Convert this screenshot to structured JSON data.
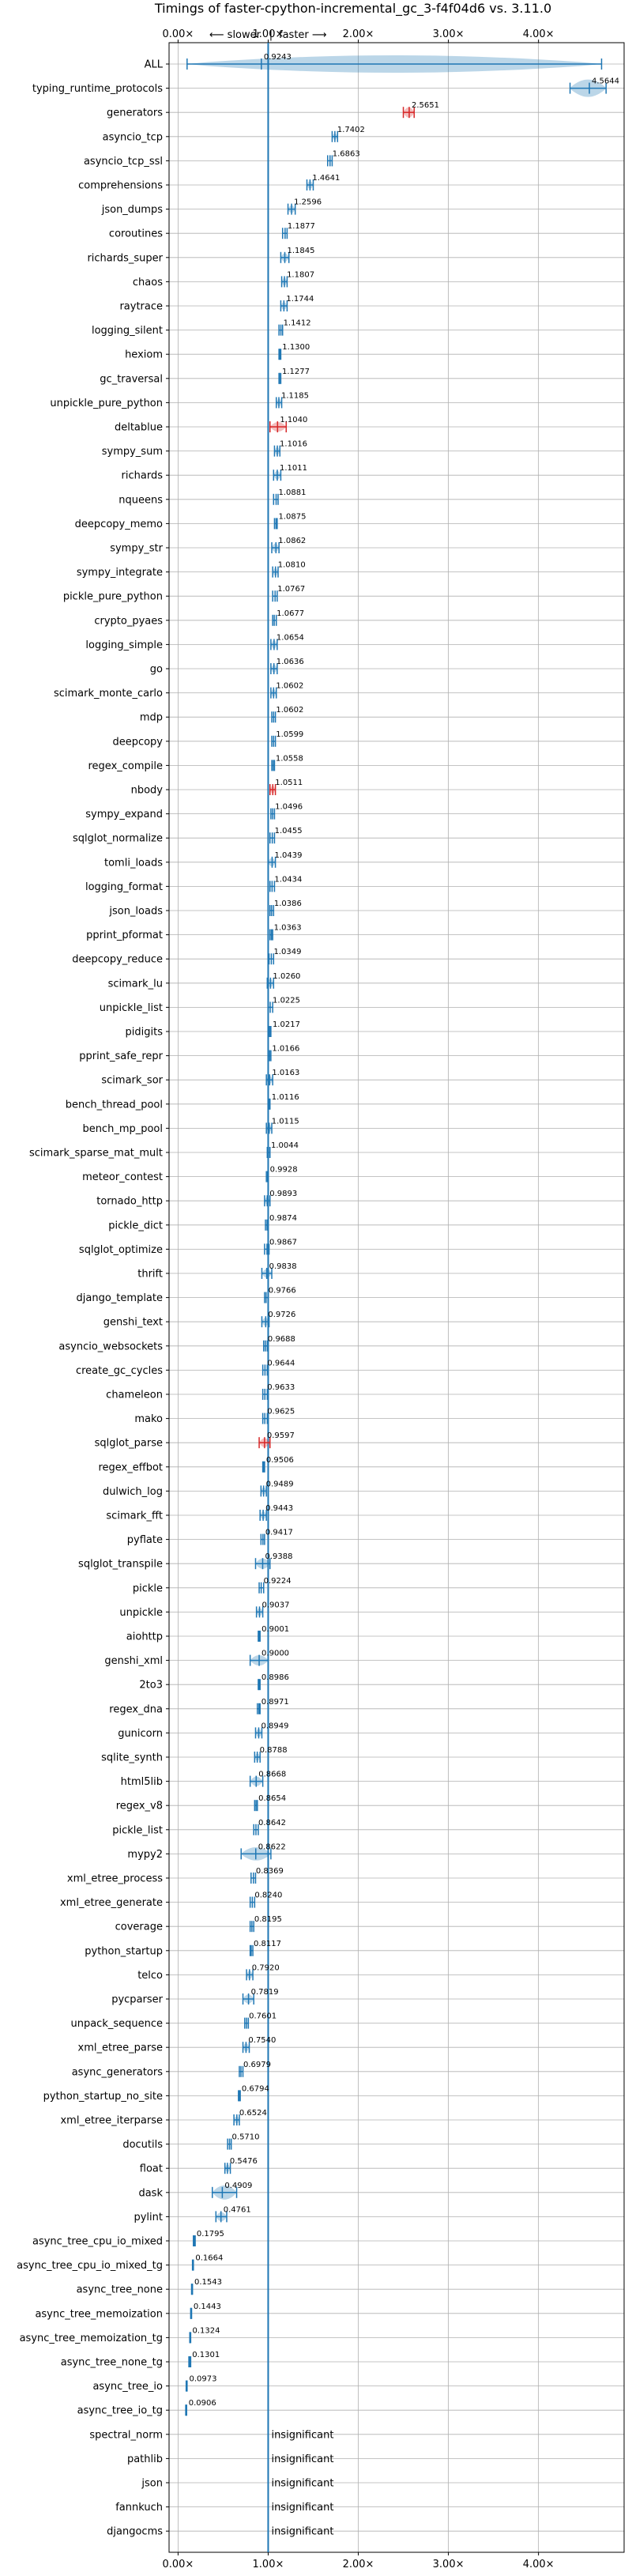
{
  "chart_data": {
    "type": "violin",
    "title": "Timings of faster-cpython-incremental_gc_3-f4f04d6 vs. 3.11.0",
    "direction_left": "⟵ slower",
    "direction_sep": "|",
    "direction_right": "faster ⟶",
    "xlim": [
      -0.1,
      4.95
    ],
    "xticks": [
      0,
      1,
      2,
      3,
      4
    ],
    "xtick_labels": [
      "0.00×",
      "1.00×",
      "2.00×",
      "3.00×",
      "4.00×"
    ],
    "reference_line": 1.0,
    "grid": true,
    "insignificant_label": "insignificant",
    "colors": {
      "violin": "#1f77b4",
      "violin_slower": "#d62728",
      "reference": "#1f77b4"
    },
    "rows": [
      {
        "name": "ALL",
        "value": 0.9243,
        "label": "0.9243",
        "lo": 0.1,
        "hi": 4.7,
        "spread": 0.45
      },
      {
        "name": "typing_runtime_protocols",
        "value": 4.5644,
        "label": "4.5644",
        "lo": 4.35,
        "hi": 4.75,
        "spread": 0.18
      },
      {
        "name": "generators",
        "value": 2.5651,
        "label": "2.5651",
        "lo": 2.5,
        "hi": 2.62,
        "spread": 0.06,
        "slower": true
      },
      {
        "name": "asyncio_tcp",
        "value": 1.7402,
        "label": "1.7402",
        "lo": 1.71,
        "hi": 1.77,
        "spread": 0.02
      },
      {
        "name": "asyncio_tcp_ssl",
        "value": 1.6863,
        "label": "1.6863",
        "lo": 1.66,
        "hi": 1.71,
        "spread": 0.02
      },
      {
        "name": "comprehensions",
        "value": 1.4641,
        "label": "1.4641",
        "lo": 1.43,
        "hi": 1.5,
        "spread": 0.03
      },
      {
        "name": "json_dumps",
        "value": 1.2596,
        "label": "1.2596",
        "lo": 1.22,
        "hi": 1.3,
        "spread": 0.03
      },
      {
        "name": "coroutines",
        "value": 1.1877,
        "label": "1.1877",
        "lo": 1.16,
        "hi": 1.21,
        "spread": 0.02
      },
      {
        "name": "richards_super",
        "value": 1.1845,
        "label": "1.1845",
        "lo": 1.14,
        "hi": 1.23,
        "spread": 0.04
      },
      {
        "name": "chaos",
        "value": 1.1807,
        "label": "1.1807",
        "lo": 1.15,
        "hi": 1.21,
        "spread": 0.03
      },
      {
        "name": "raytrace",
        "value": 1.1744,
        "label": "1.1744",
        "lo": 1.14,
        "hi": 1.21,
        "spread": 0.03
      },
      {
        "name": "logging_silent",
        "value": 1.1412,
        "label": "1.1412",
        "lo": 1.12,
        "hi": 1.16,
        "spread": 0.02
      },
      {
        "name": "hexiom",
        "value": 1.13,
        "label": "1.1300",
        "lo": 1.12,
        "hi": 1.14,
        "spread": 0.01
      },
      {
        "name": "gc_traversal",
        "value": 1.1277,
        "label": "1.1277",
        "lo": 1.12,
        "hi": 1.14,
        "spread": 0.01
      },
      {
        "name": "unpickle_pure_python",
        "value": 1.1185,
        "label": "1.1185",
        "lo": 1.09,
        "hi": 1.15,
        "spread": 0.03
      },
      {
        "name": "deltablue",
        "value": 1.104,
        "label": "1.1040",
        "lo": 1.02,
        "hi": 1.2,
        "spread": 0.05,
        "slower": true
      },
      {
        "name": "sympy_sum",
        "value": 1.1016,
        "label": "1.1016",
        "lo": 1.07,
        "hi": 1.13,
        "spread": 0.03
      },
      {
        "name": "richards",
        "value": 1.1011,
        "label": "1.1011",
        "lo": 1.06,
        "hi": 1.14,
        "spread": 0.04
      },
      {
        "name": "nqueens",
        "value": 1.0881,
        "label": "1.0881",
        "lo": 1.06,
        "hi": 1.11,
        "spread": 0.02
      },
      {
        "name": "deepcopy_memo",
        "value": 1.0875,
        "label": "1.0875",
        "lo": 1.07,
        "hi": 1.1,
        "spread": 0.015
      },
      {
        "name": "sympy_str",
        "value": 1.0862,
        "label": "1.0862",
        "lo": 1.04,
        "hi": 1.12,
        "spread": 0.04
      },
      {
        "name": "sympy_integrate",
        "value": 1.081,
        "label": "1.0810",
        "lo": 1.05,
        "hi": 1.11,
        "spread": 0.03
      },
      {
        "name": "pickle_pure_python",
        "value": 1.0767,
        "label": "1.0767",
        "lo": 1.05,
        "hi": 1.1,
        "spread": 0.03
      },
      {
        "name": "crypto_pyaes",
        "value": 1.0677,
        "label": "1.0677",
        "lo": 1.05,
        "hi": 1.09,
        "spread": 0.02
      },
      {
        "name": "logging_simple",
        "value": 1.0654,
        "label": "1.0654",
        "lo": 1.03,
        "hi": 1.1,
        "spread": 0.035
      },
      {
        "name": "go",
        "value": 1.0636,
        "label": "1.0636",
        "lo": 1.03,
        "hi": 1.1,
        "spread": 0.035
      },
      {
        "name": "scimark_monte_carlo",
        "value": 1.0602,
        "label": "1.0602",
        "lo": 1.03,
        "hi": 1.09,
        "spread": 0.03
      },
      {
        "name": "mdp",
        "value": 1.0602,
        "label": "1.0602",
        "lo": 1.04,
        "hi": 1.08,
        "spread": 0.02
      },
      {
        "name": "deepcopy",
        "value": 1.0599,
        "label": "1.0599",
        "lo": 1.04,
        "hi": 1.08,
        "spread": 0.02
      },
      {
        "name": "regex_compile",
        "value": 1.0558,
        "label": "1.0558",
        "lo": 1.04,
        "hi": 1.07,
        "spread": 0.015
      },
      {
        "name": "nbody",
        "value": 1.0511,
        "label": "1.0511",
        "lo": 1.02,
        "hi": 1.08,
        "spread": 0.03,
        "slower": true
      },
      {
        "name": "sympy_expand",
        "value": 1.0496,
        "label": "1.0496",
        "lo": 1.03,
        "hi": 1.07,
        "spread": 0.02
      },
      {
        "name": "sqlglot_normalize",
        "value": 1.0455,
        "label": "1.0455",
        "lo": 1.02,
        "hi": 1.07,
        "spread": 0.025
      },
      {
        "name": "tomli_loads",
        "value": 1.0439,
        "label": "1.0439",
        "lo": 1.0,
        "hi": 1.08,
        "spread": 0.04
      },
      {
        "name": "logging_format",
        "value": 1.0434,
        "label": "1.0434",
        "lo": 1.02,
        "hi": 1.07,
        "spread": 0.025
      },
      {
        "name": "json_loads",
        "value": 1.0386,
        "label": "1.0386",
        "lo": 1.02,
        "hi": 1.06,
        "spread": 0.02
      },
      {
        "name": "pprint_pformat",
        "value": 1.0363,
        "label": "1.0363",
        "lo": 1.02,
        "hi": 1.05,
        "spread": 0.015
      },
      {
        "name": "deepcopy_reduce",
        "value": 1.0349,
        "label": "1.0349",
        "lo": 1.01,
        "hi": 1.06,
        "spread": 0.025
      },
      {
        "name": "scimark_lu",
        "value": 1.026,
        "label": "1.0260",
        "lo": 0.99,
        "hi": 1.06,
        "spread": 0.035
      },
      {
        "name": "unpickle_list",
        "value": 1.0225,
        "label": "1.0225",
        "lo": 1.0,
        "hi": 1.05,
        "spread": 0.025
      },
      {
        "name": "pidigits",
        "value": 1.0217,
        "label": "1.0217",
        "lo": 1.01,
        "hi": 1.03,
        "spread": 0.01
      },
      {
        "name": "pprint_safe_repr",
        "value": 1.0166,
        "label": "1.0166",
        "lo": 1.0,
        "hi": 1.03,
        "spread": 0.015
      },
      {
        "name": "scimark_sor",
        "value": 1.0163,
        "label": "1.0163",
        "lo": 0.98,
        "hi": 1.05,
        "spread": 0.035
      },
      {
        "name": "bench_thread_pool",
        "value": 1.0116,
        "label": "1.0116",
        "lo": 1.0,
        "hi": 1.02,
        "spread": 0.01
      },
      {
        "name": "bench_mp_pool",
        "value": 1.0115,
        "label": "1.0115",
        "lo": 0.98,
        "hi": 1.04,
        "spread": 0.03
      },
      {
        "name": "scimark_sparse_mat_mult",
        "value": 1.0044,
        "label": "1.0044",
        "lo": 0.99,
        "hi": 1.02,
        "spread": 0.015
      },
      {
        "name": "meteor_contest",
        "value": 0.9928,
        "label": "0.9928",
        "lo": 0.98,
        "hi": 1.0,
        "spread": 0.01
      },
      {
        "name": "tornado_http",
        "value": 0.9893,
        "label": "0.9893",
        "lo": 0.96,
        "hi": 1.02,
        "spread": 0.03
      },
      {
        "name": "pickle_dict",
        "value": 0.9874,
        "label": "0.9874",
        "lo": 0.97,
        "hi": 1.0,
        "spread": 0.015
      },
      {
        "name": "sqlglot_optimize",
        "value": 0.9867,
        "label": "0.9867",
        "lo": 0.96,
        "hi": 1.01,
        "spread": 0.025
      },
      {
        "name": "thrift",
        "value": 0.9838,
        "label": "0.9838",
        "lo": 0.93,
        "hi": 1.04,
        "spread": 0.04
      },
      {
        "name": "django_template",
        "value": 0.9766,
        "label": "0.9766",
        "lo": 0.96,
        "hi": 1.0,
        "spread": 0.02
      },
      {
        "name": "genshi_text",
        "value": 0.9726,
        "label": "0.9726",
        "lo": 0.93,
        "hi": 1.01,
        "spread": 0.035
      },
      {
        "name": "asyncio_websockets",
        "value": 0.9688,
        "label": "0.9688",
        "lo": 0.95,
        "hi": 0.99,
        "spread": 0.02
      },
      {
        "name": "create_gc_cycles",
        "value": 0.9644,
        "label": "0.9644",
        "lo": 0.94,
        "hi": 0.99,
        "spread": 0.025
      },
      {
        "name": "chameleon",
        "value": 0.9633,
        "label": "0.9633",
        "lo": 0.94,
        "hi": 0.99,
        "spread": 0.025
      },
      {
        "name": "mako",
        "value": 0.9625,
        "label": "0.9625",
        "lo": 0.94,
        "hi": 0.99,
        "spread": 0.025
      },
      {
        "name": "sqlglot_parse",
        "value": 0.9597,
        "label": "0.9597",
        "lo": 0.9,
        "hi": 1.02,
        "spread": 0.045,
        "slower": true
      },
      {
        "name": "regex_effbot",
        "value": 0.9506,
        "label": "0.9506",
        "lo": 0.94,
        "hi": 0.96,
        "spread": 0.01
      },
      {
        "name": "dulwich_log",
        "value": 0.9489,
        "label": "0.9489",
        "lo": 0.92,
        "hi": 0.98,
        "spread": 0.03
      },
      {
        "name": "scimark_fft",
        "value": 0.9443,
        "label": "0.9443",
        "lo": 0.91,
        "hi": 0.98,
        "spread": 0.035
      },
      {
        "name": "pyflate",
        "value": 0.9417,
        "label": "0.9417",
        "lo": 0.92,
        "hi": 0.96,
        "spread": 0.02
      },
      {
        "name": "sqlglot_transpile",
        "value": 0.9388,
        "label": "0.9388",
        "lo": 0.86,
        "hi": 1.02,
        "spread": 0.06
      },
      {
        "name": "pickle",
        "value": 0.9224,
        "label": "0.9224",
        "lo": 0.9,
        "hi": 0.95,
        "spread": 0.025
      },
      {
        "name": "unpickle",
        "value": 0.9037,
        "label": "0.9037",
        "lo": 0.87,
        "hi": 0.94,
        "spread": 0.035
      },
      {
        "name": "aiohttp",
        "value": 0.9001,
        "label": "0.9001",
        "lo": 0.89,
        "hi": 0.91,
        "spread": 0.01
      },
      {
        "name": "genshi_xml",
        "value": 0.9,
        "label": "0.9000",
        "lo": 0.8,
        "hi": 1.0,
        "spread": 0.06
      },
      {
        "name": "2to3",
        "value": 0.8986,
        "label": "0.8986",
        "lo": 0.89,
        "hi": 0.91,
        "spread": 0.01
      },
      {
        "name": "regex_dna",
        "value": 0.8971,
        "label": "0.8971",
        "lo": 0.88,
        "hi": 0.91,
        "spread": 0.01
      },
      {
        "name": "gunicorn",
        "value": 0.8949,
        "label": "0.8949",
        "lo": 0.86,
        "hi": 0.93,
        "spread": 0.035
      },
      {
        "name": "sqlite_synth",
        "value": 0.8788,
        "label": "0.8788",
        "lo": 0.85,
        "hi": 0.91,
        "spread": 0.03
      },
      {
        "name": "html5lib",
        "value": 0.8668,
        "label": "0.8668",
        "lo": 0.8,
        "hi": 0.94,
        "spread": 0.05
      },
      {
        "name": "regex_v8",
        "value": 0.8654,
        "label": "0.8654",
        "lo": 0.85,
        "hi": 0.88,
        "spread": 0.015
      },
      {
        "name": "pickle_list",
        "value": 0.8642,
        "label": "0.8642",
        "lo": 0.84,
        "hi": 0.89,
        "spread": 0.025
      },
      {
        "name": "mypy2",
        "value": 0.8622,
        "label": "0.8622",
        "lo": 0.7,
        "hi": 1.03,
        "spread": 0.09
      },
      {
        "name": "xml_etree_process",
        "value": 0.8369,
        "label": "0.8369",
        "lo": 0.81,
        "hi": 0.86,
        "spread": 0.025
      },
      {
        "name": "xml_etree_generate",
        "value": 0.824,
        "label": "0.8240",
        "lo": 0.8,
        "hi": 0.85,
        "spread": 0.025
      },
      {
        "name": "coverage",
        "value": 0.8195,
        "label": "0.8195",
        "lo": 0.8,
        "hi": 0.84,
        "spread": 0.02
      },
      {
        "name": "python_startup",
        "value": 0.8117,
        "label": "0.8117",
        "lo": 0.8,
        "hi": 0.83,
        "spread": 0.01
      },
      {
        "name": "telco",
        "value": 0.792,
        "label": "0.7920",
        "lo": 0.76,
        "hi": 0.83,
        "spread": 0.035
      },
      {
        "name": "pycparser",
        "value": 0.7819,
        "label": "0.7819",
        "lo": 0.72,
        "hi": 0.84,
        "spread": 0.045
      },
      {
        "name": "unpack_sequence",
        "value": 0.7601,
        "label": "0.7601",
        "lo": 0.74,
        "hi": 0.78,
        "spread": 0.02
      },
      {
        "name": "xml_etree_parse",
        "value": 0.754,
        "label": "0.7540",
        "lo": 0.72,
        "hi": 0.79,
        "spread": 0.035
      },
      {
        "name": "async_generators",
        "value": 0.6979,
        "label": "0.6979",
        "lo": 0.68,
        "hi": 0.72,
        "spread": 0.02
      },
      {
        "name": "python_startup_no_site",
        "value": 0.6794,
        "label": "0.6794",
        "lo": 0.67,
        "hi": 0.69,
        "spread": 0.01
      },
      {
        "name": "xml_etree_iterparse",
        "value": 0.6524,
        "label": "0.6524",
        "lo": 0.62,
        "hi": 0.68,
        "spread": 0.03
      },
      {
        "name": "docutils",
        "value": 0.571,
        "label": "0.5710",
        "lo": 0.55,
        "hi": 0.59,
        "spread": 0.02
      },
      {
        "name": "float",
        "value": 0.5476,
        "label": "0.5476",
        "lo": 0.52,
        "hi": 0.58,
        "spread": 0.03
      },
      {
        "name": "dask",
        "value": 0.4909,
        "label": "0.4909",
        "lo": 0.38,
        "hi": 0.65,
        "spread": 0.1
      },
      {
        "name": "pylint",
        "value": 0.4761,
        "label": "0.4761",
        "lo": 0.42,
        "hi": 0.54,
        "spread": 0.045
      },
      {
        "name": "async_tree_cpu_io_mixed",
        "value": 0.1795,
        "label": "0.1795",
        "lo": 0.17,
        "hi": 0.19,
        "spread": 0.01
      },
      {
        "name": "async_tree_cpu_io_mixed_tg",
        "value": 0.1664,
        "label": "0.1664",
        "lo": 0.16,
        "hi": 0.17,
        "spread": 0.01
      },
      {
        "name": "async_tree_none",
        "value": 0.1543,
        "label": "0.1543",
        "lo": 0.15,
        "hi": 0.16,
        "spread": 0.008
      },
      {
        "name": "async_tree_memoization",
        "value": 0.1443,
        "label": "0.1443",
        "lo": 0.14,
        "hi": 0.15,
        "spread": 0.008
      },
      {
        "name": "async_tree_memoization_tg",
        "value": 0.1324,
        "label": "0.1324",
        "lo": 0.13,
        "hi": 0.14,
        "spread": 0.008
      },
      {
        "name": "async_tree_none_tg",
        "value": 0.1301,
        "label": "0.1301",
        "lo": 0.12,
        "hi": 0.14,
        "spread": 0.008
      },
      {
        "name": "async_tree_io",
        "value": 0.0973,
        "label": "0.0973",
        "lo": 0.09,
        "hi": 0.1,
        "spread": 0.008
      },
      {
        "name": "async_tree_io_tg",
        "value": 0.0906,
        "label": "0.0906",
        "lo": 0.085,
        "hi": 0.095,
        "spread": 0.008
      },
      {
        "name": "spectral_norm",
        "insignificant": true
      },
      {
        "name": "pathlib",
        "insignificant": true
      },
      {
        "name": "json",
        "insignificant": true
      },
      {
        "name": "fannkuch",
        "insignificant": true
      },
      {
        "name": "djangocms",
        "insignificant": true
      }
    ]
  }
}
